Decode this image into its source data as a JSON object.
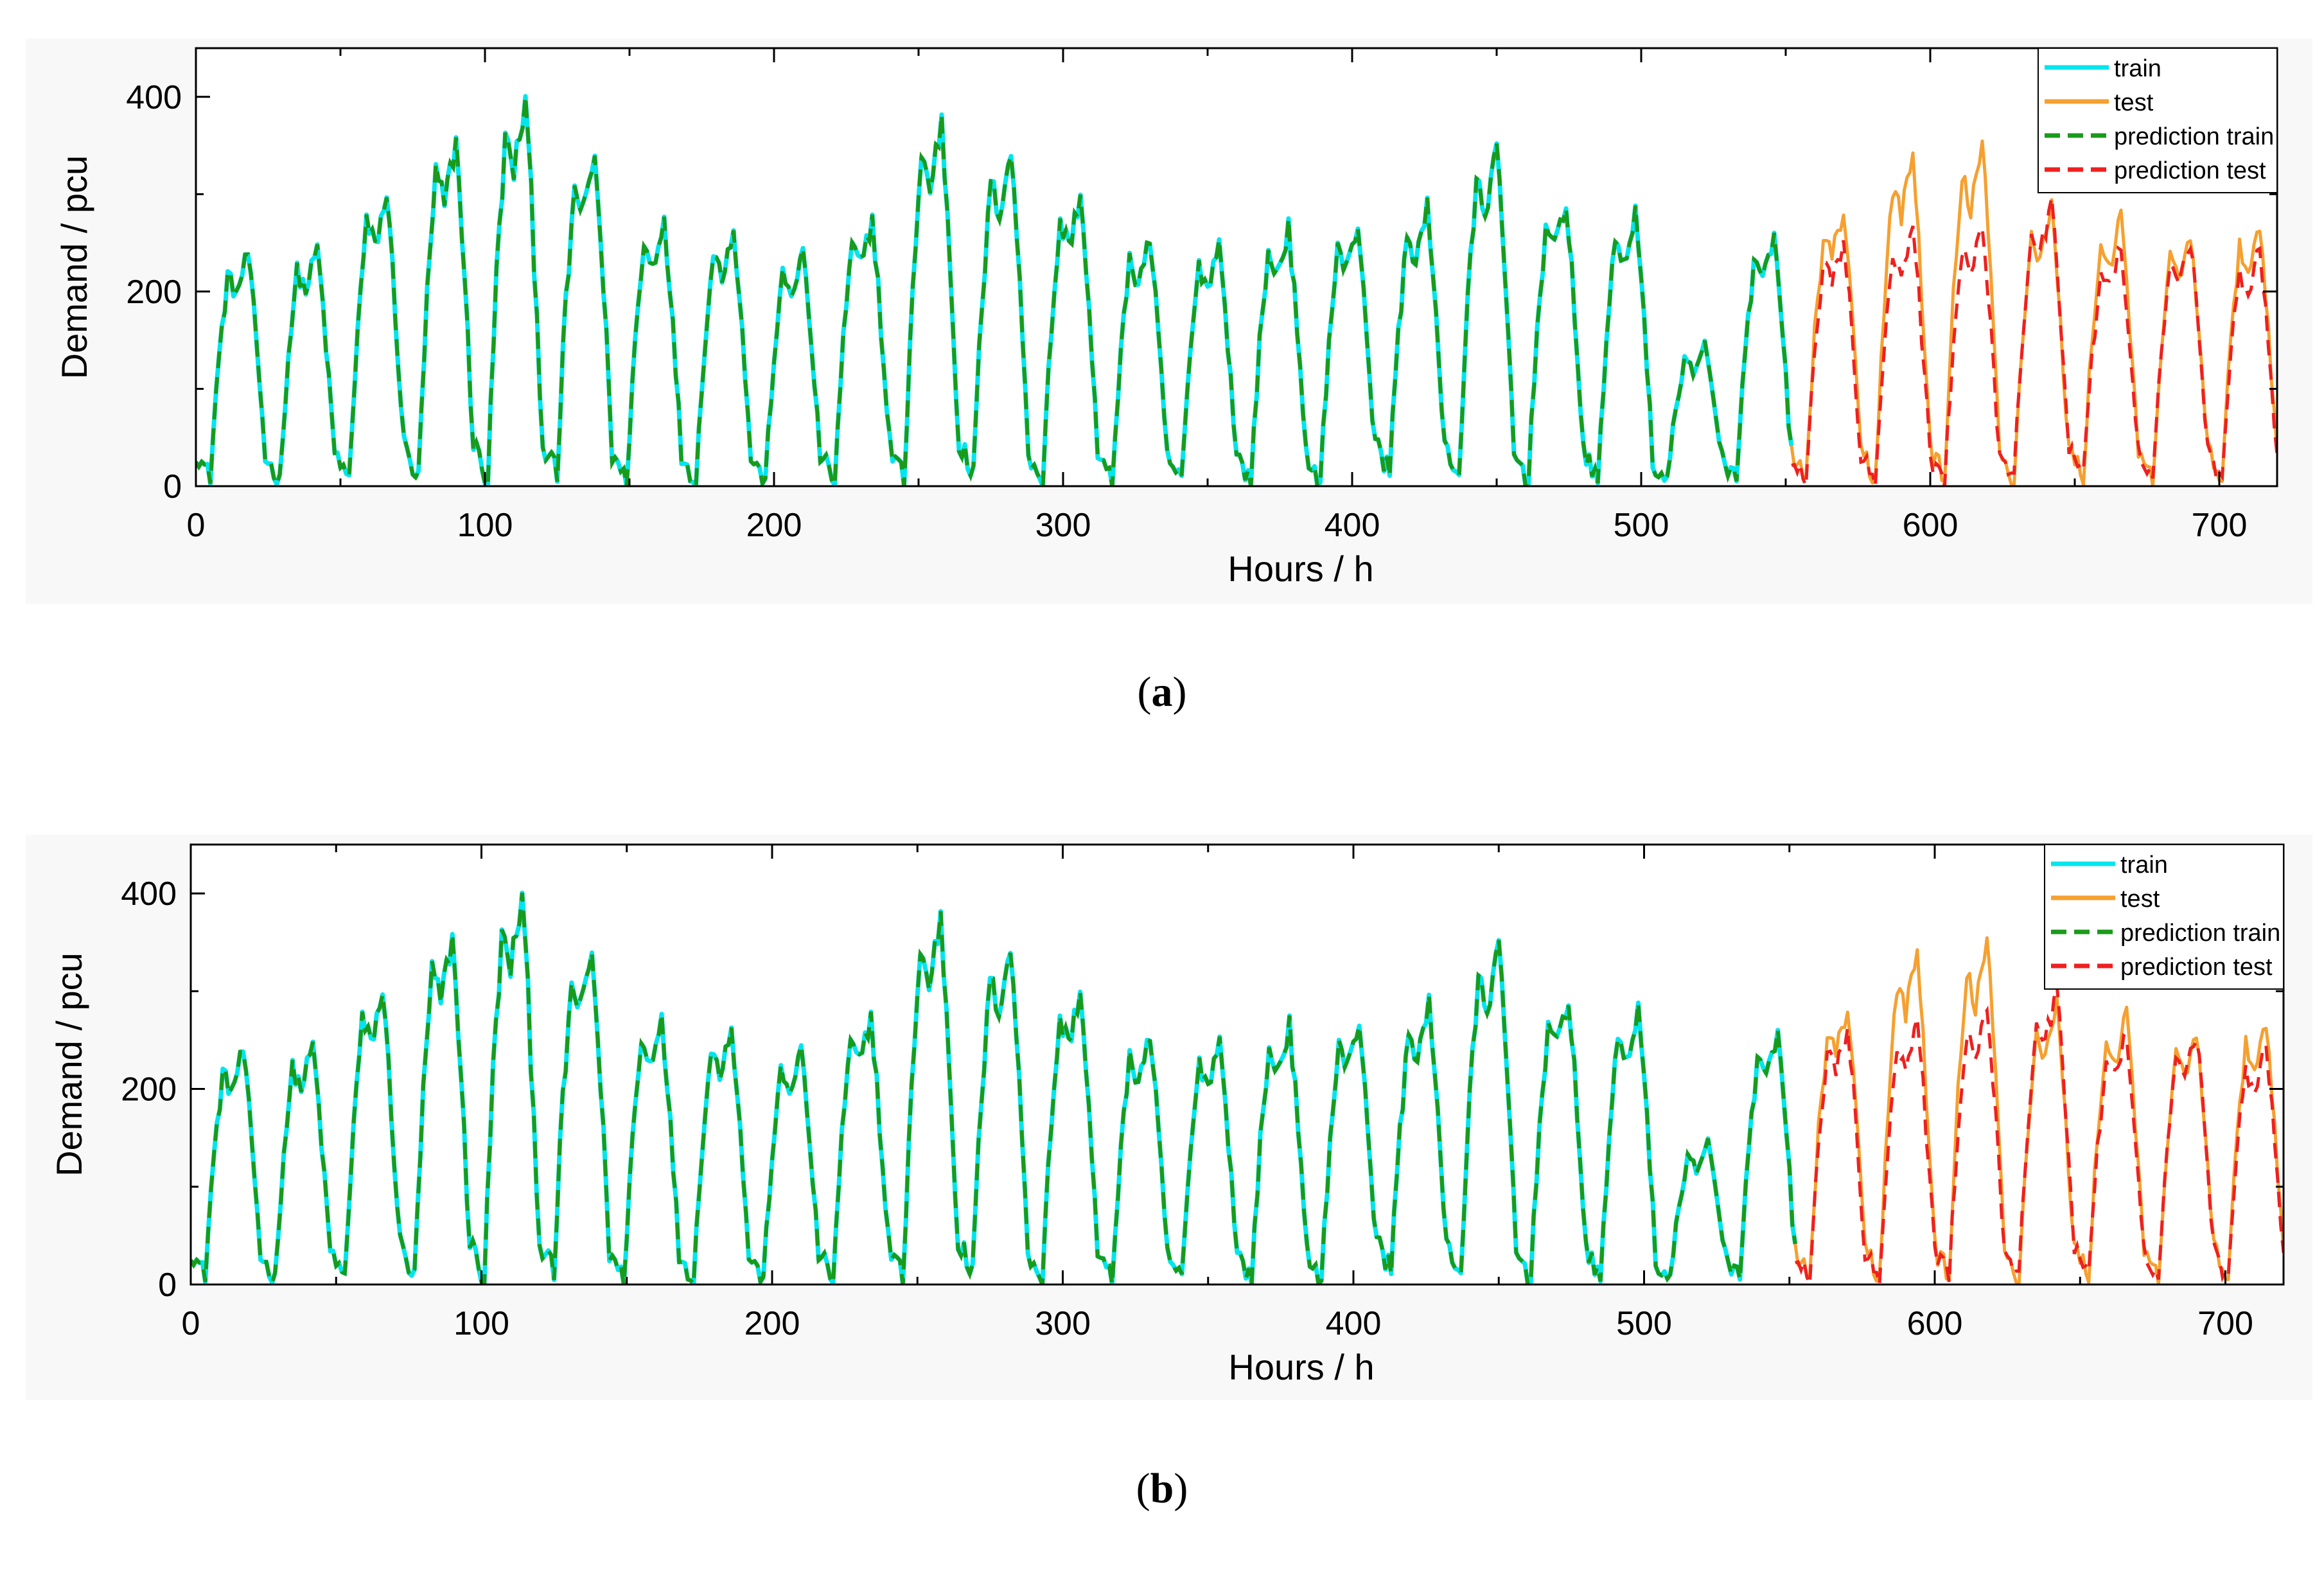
{
  "chart_data": [
    {
      "panel": "a",
      "type": "line",
      "xlabel": "Hours / h",
      "ylabel": "Demand / pcu",
      "xlim": [
        0,
        720
      ],
      "ylim": [
        0,
        450
      ],
      "xticks": [
        0,
        100,
        200,
        300,
        400,
        500,
        600,
        700
      ],
      "yticks": [
        0,
        200,
        400
      ],
      "legend_position": "top-right",
      "series": [
        {
          "name": "train",
          "color": "#00e5ee",
          "style": "solid"
        },
        {
          "name": "test",
          "color": "#f5a030",
          "style": "solid"
        },
        {
          "name": "prediction train",
          "color": "#1a9a1a",
          "style": "dashed"
        },
        {
          "name": "prediction test",
          "color": "#ee2020",
          "style": "dashed"
        }
      ],
      "daily_peaks": [
        240,
        245,
        300,
        355,
        395,
        340,
        275,
        265,
        240,
        275,
        375,
        345,
        300,
        255,
        250,
        265,
        270,
        285,
        345,
        295,
        280,
        145,
        255,
        285,
        340,
        350,
        285,
        275,
        260,
        270
      ],
      "daily_troughs": [
        10,
        5,
        5,
        5,
        5,
        10,
        5,
        5,
        5,
        5,
        5,
        10,
        5,
        5,
        5,
        5,
        5,
        15,
        10,
        5,
        5,
        5,
        5,
        5,
        5,
        5,
        5,
        10,
        5,
        10
      ],
      "split_hour": 552,
      "prediction_test_daily_peaks": [
        255,
        265,
        265,
        290,
        245,
        255,
        245,
        245
      ],
      "prediction_test_daily_troughs": [
        0,
        5,
        0,
        10,
        15,
        10,
        5,
        5
      ]
    },
    {
      "panel": "b",
      "type": "line",
      "xlabel": "Hours / h",
      "ylabel": "Demand / pcu",
      "xlim": [
        0,
        720
      ],
      "ylim": [
        0,
        450
      ],
      "xticks": [
        0,
        100,
        200,
        300,
        400,
        500,
        600,
        700
      ],
      "yticks": [
        0,
        200,
        400
      ],
      "legend_position": "top-right",
      "series": [
        {
          "name": "train",
          "color": "#00e5ee",
          "style": "solid"
        },
        {
          "name": "test",
          "color": "#f5a030",
          "style": "solid"
        },
        {
          "name": "prediction train",
          "color": "#1a9a1a",
          "style": "dashed"
        },
        {
          "name": "prediction test",
          "color": "#ee2020",
          "style": "dashed"
        }
      ],
      "daily_peaks": [
        240,
        245,
        300,
        355,
        395,
        340,
        275,
        265,
        240,
        275,
        375,
        345,
        300,
        255,
        250,
        265,
        270,
        285,
        345,
        295,
        280,
        145,
        255,
        285,
        340,
        350,
        285,
        275,
        260,
        270
      ],
      "daily_troughs": [
        10,
        5,
        5,
        5,
        5,
        10,
        5,
        5,
        5,
        5,
        5,
        10,
        5,
        5,
        5,
        5,
        5,
        15,
        10,
        5,
        5,
        5,
        5,
        5,
        5,
        5,
        5,
        10,
        5,
        10
      ],
      "split_hour": 552,
      "prediction_test_daily_peaks": [
        265,
        270,
        280,
        300,
        255,
        260,
        245,
        250
      ],
      "prediction_test_daily_troughs": [
        0,
        5,
        10,
        10,
        10,
        5,
        5,
        5
      ]
    }
  ],
  "captions": {
    "a": "a",
    "b": "b"
  }
}
